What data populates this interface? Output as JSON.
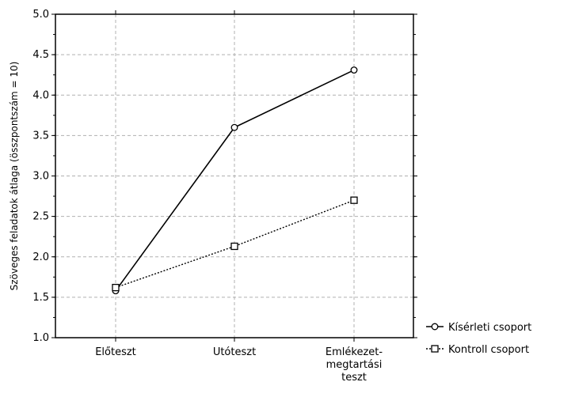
{
  "chart_data": {
    "type": "line",
    "title": "",
    "xlabel": "",
    "ylabel": "Szöveges feladatok átlaga (összpontszám = 10)",
    "categories": [
      [
        "Előteszt"
      ],
      [
        "Utóteszt"
      ],
      [
        "Emlékezet-",
        "megtartási",
        "teszt"
      ]
    ],
    "ylim": [
      1.0,
      5.0
    ],
    "yticks": [
      "1.0",
      "1.5",
      "2.0",
      "2.5",
      "3.0",
      "3.5",
      "4.0",
      "4.5",
      "5.0"
    ],
    "grid": true,
    "legend_position": "bottom-right",
    "series": [
      {
        "name": "Kísérleti csoport",
        "values": [
          1.58,
          3.6,
          4.31
        ],
        "marker": "circle",
        "line": "solid",
        "color": "#000000"
      },
      {
        "name": "Kontroll csoport",
        "values": [
          1.62,
          2.13,
          2.7
        ],
        "marker": "square",
        "line": "dotted",
        "color": "#000000"
      }
    ]
  }
}
